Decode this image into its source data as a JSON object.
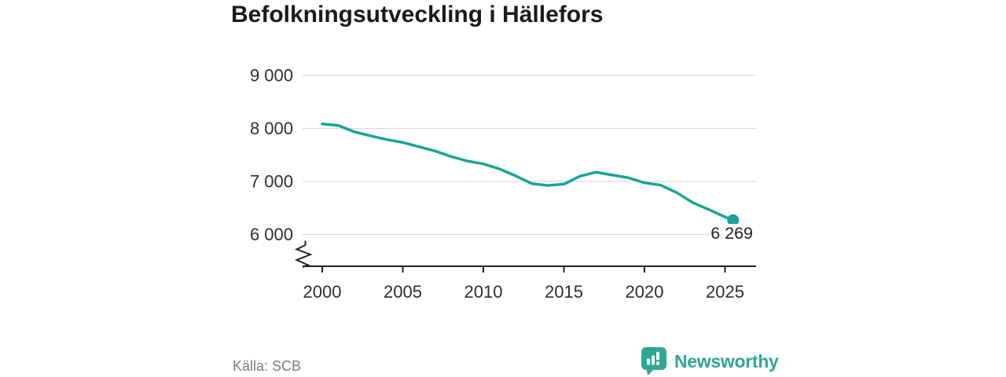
{
  "title": "Befolkningsutveckling i Hällefors",
  "source": "Källa: SCB",
  "logo": {
    "name": "Newsworthy",
    "icon": "newsworthy-speech-bubble-barchart-icon",
    "color": "#2fa795"
  },
  "colors": {
    "line": "#1aa396",
    "gridline": "#d9d9d9",
    "axis": "#222222",
    "tick_label": "#2e2e2e",
    "annotation": "#222222"
  },
  "chart_data": {
    "type": "line",
    "title": "Befolkningsutveckling i Hällefors",
    "xlabel": "",
    "ylabel": "",
    "ylim": [
      6000,
      9000
    ],
    "y_axis_break": true,
    "grid": "horizontal",
    "x_axis": {
      "ticks": [
        "2000",
        "2005",
        "2010",
        "2015",
        "2020",
        "2025"
      ]
    },
    "y_axis": {
      "ticks": [
        {
          "label": "9 000",
          "value": 9000
        },
        {
          "label": "8 000",
          "value": 8000
        },
        {
          "label": "7 000",
          "value": 7000
        },
        {
          "label": "6 000",
          "value": 6000
        }
      ]
    },
    "series": [
      {
        "color": "#1aa396",
        "x": [
          2000,
          2001,
          2002,
          2003,
          2004,
          2005,
          2006,
          2007,
          2008,
          2009,
          2010,
          2011,
          2012,
          2013,
          2014,
          2015,
          2016,
          2017,
          2018,
          2019,
          2020,
          2021,
          2022,
          2023,
          2024,
          2025,
          2025.5
        ],
        "values": [
          8085,
          8055,
          7935,
          7860,
          7790,
          7735,
          7655,
          7575,
          7470,
          7385,
          7330,
          7235,
          7105,
          6960,
          6925,
          6950,
          7100,
          7175,
          7120,
          7070,
          6975,
          6930,
          6790,
          6600,
          6470,
          6330,
          6269
        ]
      }
    ],
    "end_annotation": {
      "label": "6 269",
      "value": 6269
    }
  }
}
